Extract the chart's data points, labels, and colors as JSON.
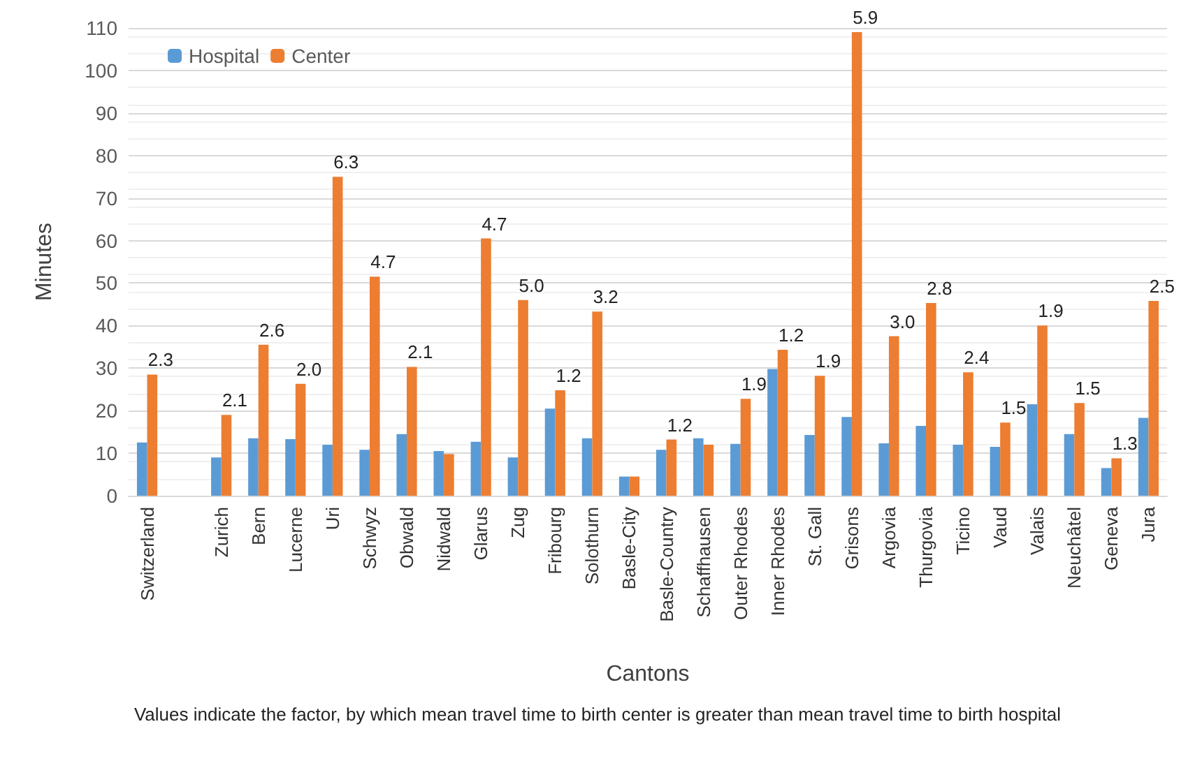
{
  "chart_data": {
    "type": "bar",
    "xlabel": "Cantons",
    "ylabel": "Minutes",
    "categories": [
      "Switzerland",
      null,
      "Zurich",
      "Bern",
      "Lucerne",
      "Uri",
      "Schwyz",
      "Obwald",
      "Nidwald",
      "Glarus",
      "Zug",
      "Fribourg",
      "Solothurn",
      "Basle-City",
      "Basle-Country",
      "Schaffhausen",
      "Outer Rhodes",
      "Inner Rhodes",
      "St. Gall",
      "Grisons",
      "Argovia",
      "Thurgovia",
      "Ticino",
      "Vaud",
      "Valais",
      "Neuchâtel",
      "Geneva",
      "Jura"
    ],
    "series": [
      {
        "name": "Hospital",
        "color": "#5b9bd5",
        "values": [
          12.5,
          null,
          9,
          13.5,
          13.3,
          12,
          10.8,
          14.5,
          10.5,
          12.7,
          9,
          20.5,
          13.5,
          4.5,
          10.8,
          13.5,
          12.2,
          29.8,
          14.3,
          18.5,
          12.3,
          16.4,
          12,
          11.5,
          21.5,
          14.5,
          6.5,
          18.3
        ]
      },
      {
        "name": "Center",
        "color": "#ed7d31",
        "values": [
          28.5,
          null,
          19,
          35.5,
          26.3,
          75,
          51.5,
          30.3,
          9.8,
          60.5,
          46,
          24.8,
          43.3,
          4.5,
          13.2,
          12,
          22.8,
          34.3,
          28.2,
          109,
          37.5,
          45.3,
          29,
          17.2,
          40,
          21.8,
          8.8,
          45.8
        ]
      }
    ],
    "ylim": [
      0,
      110
    ],
    "yticks": [
      0,
      10,
      20,
      30,
      40,
      50,
      60,
      70,
      80,
      90,
      100,
      110
    ],
    "grid": "y",
    "legend": "top left",
    "annotations": [
      {
        "text": "2.3",
        "x": "Switzerland",
        "y": 28.5
      },
      {
        "text": "2.1",
        "x": "Zurich",
        "y": 19
      },
      {
        "text": "2.6",
        "x": "Bern",
        "y": 35.5
      },
      {
        "text": "2.0",
        "x": "Lucerne",
        "y": 26.3
      },
      {
        "text": "6.3",
        "x": "Uri",
        "y": 75
      },
      {
        "text": "4.7",
        "x": "Schwyz",
        "y": 51.5
      },
      {
        "text": "2.1",
        "x": "Obwald",
        "y": 30.3
      },
      {
        "text": "4.7",
        "x": "Glarus",
        "y": 60.5
      },
      {
        "text": "5.0",
        "x": "Zug",
        "y": 46
      },
      {
        "text": "1.2",
        "x": "Fribourg",
        "y": 24.8
      },
      {
        "text": "3.2",
        "x": "Solothurn",
        "y": 43.3
      },
      {
        "text": "1.2",
        "x": "Basle-Country",
        "y": 13.2
      },
      {
        "text": "1.9",
        "x": "Outer Rhodes",
        "y": 22.8
      },
      {
        "text": "1.2",
        "x": "Inner Rhodes",
        "y": 34.3
      },
      {
        "text": "1.9",
        "x": "St. Gall",
        "y": 28.2
      },
      {
        "text": "5.9",
        "x": "Grisons",
        "y": 109
      },
      {
        "text": "3.0",
        "x": "Argovia",
        "y": 37.5
      },
      {
        "text": "2.8",
        "x": "Thurgovia",
        "y": 45.3
      },
      {
        "text": "2.4",
        "x": "Ticino",
        "y": 29
      },
      {
        "text": "1.5",
        "x": "Vaud",
        "y": 17.2
      },
      {
        "text": "1.9",
        "x": "Valais",
        "y": 40
      },
      {
        "text": "1.5",
        "x": "Neuchâtel",
        "y": 21.8
      },
      {
        "text": "1.3",
        "x": "Geneva",
        "y": 8.8
      },
      {
        "text": "2.5",
        "x": "Jura",
        "y": 45.8
      },
      "Values indicate the factor, by which mean travel time to birth center is greater than mean travel time to birth hospital"
    ]
  }
}
